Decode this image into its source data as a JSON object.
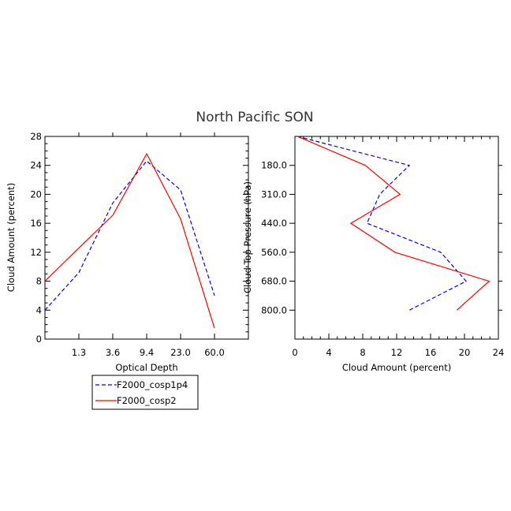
{
  "title": "North Pacific SON",
  "colors": {
    "blue_series": "#0000ff",
    "red_series": "#ff0000"
  },
  "legend": {
    "entries": [
      {
        "label": "F2000_cosp1p4",
        "color": "#0000ff",
        "dash": "dashed"
      },
      {
        "label": "F2000_cosp2",
        "color": "#ff0000",
        "dash": "solid"
      }
    ]
  },
  "chart_data": [
    {
      "type": "line",
      "xlabel": "Optical Depth",
      "ylabel": "Cloud Amount (percent)",
      "x_tick_labels": [
        "1.3",
        "3.6",
        "9.4",
        "23.0",
        "60.0"
      ],
      "x_categories": [
        "0.3",
        "1.3",
        "3.6",
        "9.4",
        "23.0",
        "60.0",
        "380"
      ],
      "ylim": [
        0,
        28
      ],
      "y_ticks": [
        0,
        4,
        8,
        12,
        16,
        20,
        24,
        28
      ],
      "series": [
        {
          "name": "F2000_cosp1p4",
          "values": [
            4.0,
            9.2,
            18.8,
            24.6,
            20.6,
            6.0
          ]
        },
        {
          "name": "F2000_cosp2",
          "values": [
            8.0,
            12.6,
            17.1,
            25.6,
            16.6,
            1.5
          ]
        }
      ]
    },
    {
      "type": "line",
      "xlabel": "Cloud Amount (percent)",
      "ylabel": "Cloud Top Pressure (hPa)",
      "xlim": [
        0,
        24
      ],
      "x_ticks": [
        0,
        4,
        8,
        12,
        16,
        20,
        24
      ],
      "y_tick_labels": [
        "180.0",
        "310.0",
        "440.0",
        "560.0",
        "680.0",
        "800.0"
      ],
      "y_levels": [
        "50",
        "180.0",
        "310.0",
        "440.0",
        "560.0",
        "680.0",
        "800.0",
        "1000"
      ],
      "series": [
        {
          "name": "F2000_cosp1p4",
          "values": [
            0.3,
            13.5,
            10.0,
            8.5,
            17.2,
            20.2,
            13.5
          ]
        },
        {
          "name": "F2000_cosp2",
          "values": [
            0.3,
            8.3,
            12.4,
            6.6,
            11.8,
            22.9,
            19.1
          ]
        }
      ]
    }
  ]
}
